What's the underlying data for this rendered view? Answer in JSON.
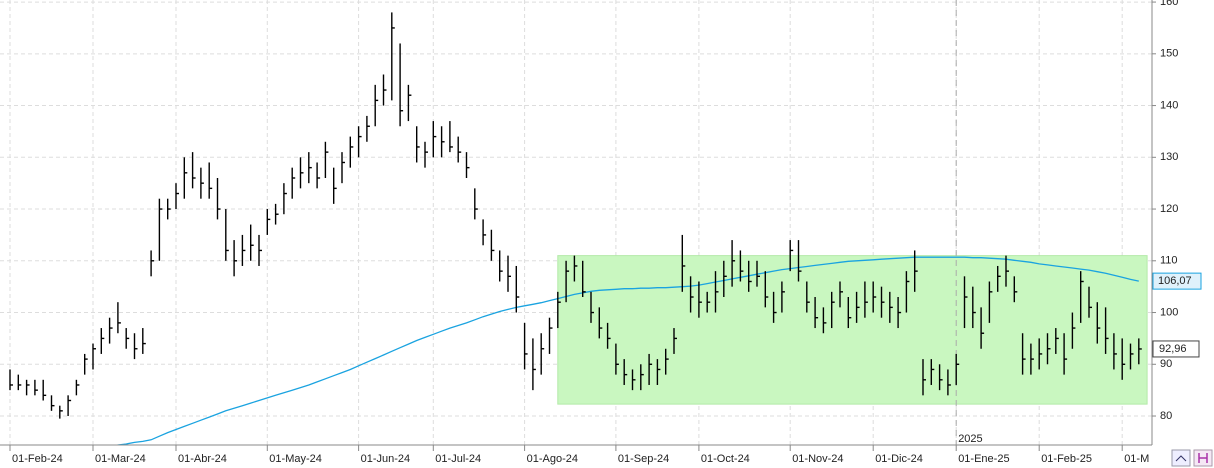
{
  "chart_data": {
    "type": "ohlc",
    "categories": [
      "01-Feb-24",
      null,
      null,
      null,
      null,
      null,
      null,
      null,
      null,
      null,
      "01-Mar-24",
      null,
      null,
      null,
      null,
      null,
      null,
      null,
      null,
      null,
      "01-Abr-24",
      null,
      null,
      null,
      null,
      null,
      null,
      null,
      null,
      null,
      null,
      "01-May-24",
      null,
      null,
      null,
      null,
      null,
      null,
      null,
      null,
      null,
      null,
      "01-Jun-24",
      null,
      null,
      null,
      null,
      null,
      null,
      null,
      null,
      "01-Jul-24",
      null,
      null,
      null,
      null,
      null,
      null,
      null,
      null,
      null,
      null,
      "01-Ago-24",
      null,
      null,
      null,
      null,
      null,
      null,
      null,
      null,
      null,
      null,
      "01-Sep-24",
      null,
      null,
      null,
      null,
      null,
      null,
      null,
      null,
      null,
      "01-Oct-24",
      null,
      null,
      null,
      null,
      null,
      null,
      null,
      null,
      null,
      null,
      "01-Nov-24",
      null,
      null,
      null,
      null,
      null,
      null,
      null,
      null,
      null,
      "01-Dic-24",
      null,
      null,
      null,
      null,
      null,
      null,
      null,
      null,
      null,
      "01-Ene-25",
      null,
      null,
      null,
      null,
      null,
      null,
      null,
      null,
      null,
      "01-Feb-25",
      null,
      null,
      null,
      null,
      null,
      null,
      null,
      null,
      null,
      "01-M",
      null,
      null
    ],
    "high": [
      89,
      88,
      87,
      87,
      87,
      84,
      82,
      84,
      87,
      92,
      94,
      97,
      99,
      102,
      97,
      96,
      97,
      112,
      122,
      122,
      125,
      130,
      131,
      128,
      129,
      126,
      120,
      114,
      115,
      117,
      115,
      120,
      121,
      125,
      128,
      130,
      131,
      129,
      133,
      128,
      131,
      134,
      136,
      138,
      144,
      146,
      158,
      152,
      144,
      136,
      133,
      137,
      136,
      137,
      134,
      131,
      124,
      118,
      116,
      112,
      111,
      109,
      98,
      95,
      96,
      99,
      104,
      110,
      111,
      110,
      104,
      101,
      98,
      94,
      91,
      89,
      90,
      92,
      91,
      93,
      97,
      115,
      107,
      106,
      104,
      108,
      110,
      114,
      112,
      110,
      110,
      108,
      104,
      106,
      114,
      114,
      106,
      103,
      101,
      104,
      106,
      103,
      104,
      106,
      106,
      105,
      104,
      103,
      108,
      112,
      91,
      91,
      90,
      89,
      92,
      107,
      105,
      101,
      106,
      109,
      111,
      107,
      96,
      94,
      95,
      96,
      97,
      96,
      100,
      108,
      105,
      102,
      101,
      96,
      95,
      94,
      95
    ],
    "low": [
      85,
      85,
      84,
      84,
      83,
      81,
      79.5,
      80,
      84,
      88,
      89,
      92,
      94,
      96,
      93,
      91,
      92,
      107,
      110,
      118,
      120,
      122,
      124,
      122,
      122,
      118,
      110,
      107,
      109,
      110,
      109,
      115,
      117,
      119,
      122,
      124,
      125,
      124,
      126,
      121,
      125,
      128,
      130,
      133,
      136,
      140,
      141,
      136,
      137,
      129,
      128,
      130,
      130,
      131,
      129,
      126,
      118,
      113,
      110,
      106,
      104,
      100,
      89,
      85,
      88,
      92,
      97,
      102,
      106,
      103,
      98,
      95,
      93,
      88,
      86,
      85,
      85,
      86,
      86,
      88,
      92,
      104,
      100,
      99,
      100,
      100,
      103,
      105,
      106,
      104,
      105,
      101,
      98,
      100,
      108,
      106,
      100,
      97,
      96,
      97,
      101,
      97,
      98,
      99,
      100,
      99,
      98,
      97,
      100,
      104,
      84,
      86,
      85,
      84,
      86,
      97,
      97,
      93,
      98,
      104,
      105,
      102,
      88,
      88,
      89,
      90,
      92,
      88,
      93,
      98,
      99,
      94,
      92,
      89,
      87,
      89,
      90
    ],
    "close": [
      86,
      86,
      86,
      85,
      84,
      82,
      81,
      83,
      86,
      91,
      93,
      95,
      97,
      98,
      95,
      93,
      94,
      110,
      120,
      120,
      123,
      127,
      126,
      125,
      124,
      120,
      112,
      110,
      112,
      113,
      112,
      118,
      119,
      123,
      126,
      127,
      128,
      126,
      131,
      124,
      129,
      132,
      134,
      136,
      141,
      143,
      155,
      139,
      142,
      132,
      131,
      134,
      133,
      132,
      131,
      128,
      120,
      115,
      112,
      108,
      107,
      103,
      92,
      89,
      93,
      97,
      102,
      108,
      109,
      104,
      100,
      97,
      95,
      90,
      88,
      87,
      88,
      90,
      89,
      91,
      95,
      109,
      103,
      102,
      102,
      104,
      107,
      110,
      108,
      106,
      107,
      103,
      100,
      104,
      112,
      108,
      102,
      99,
      98,
      102,
      104,
      99,
      101,
      102,
      103,
      102,
      101,
      100,
      106,
      108,
      87,
      89,
      87,
      86,
      90,
      103,
      100,
      96,
      104,
      107,
      108,
      104,
      91,
      91,
      92,
      93,
      95,
      91,
      97,
      106,
      101,
      97,
      95,
      92,
      90,
      92,
      92.96
    ],
    "color": "#000000",
    "moving_average": {
      "color": "#1aa3e0",
      "values": [
        null,
        null,
        null,
        null,
        null,
        null,
        null,
        null,
        null,
        null,
        null,
        null,
        74.1,
        74.4,
        74.6,
        74.9,
        75.1,
        75.4,
        76.1,
        76.8,
        77.4,
        78.0,
        78.6,
        79.2,
        79.8,
        80.4,
        81.0,
        81.5,
        82.0,
        82.5,
        83.0,
        83.5,
        84.0,
        84.5,
        85.0,
        85.5,
        86.0,
        86.6,
        87.2,
        87.8,
        88.4,
        89.0,
        89.7,
        90.4,
        91.1,
        91.8,
        92.5,
        93.2,
        93.9,
        94.6,
        95.2,
        95.8,
        96.4,
        97.0,
        97.5,
        98.0,
        98.6,
        99.2,
        99.7,
        100.2,
        100.6,
        101.0,
        101.3,
        101.6,
        101.9,
        102.3,
        102.7,
        103.1,
        103.5,
        103.8,
        104.1,
        104.3,
        104.4,
        104.5,
        104.6,
        104.6,
        104.7,
        104.7,
        104.8,
        104.8,
        104.9,
        105.0,
        105.1,
        105.3,
        105.6,
        105.9,
        106.2,
        106.5,
        106.8,
        107.1,
        107.4,
        107.7,
        108.0,
        108.3,
        108.5,
        108.7,
        108.9,
        109.1,
        109.3,
        109.5,
        109.7,
        109.9,
        110.0,
        110.1,
        110.2,
        110.3,
        110.4,
        110.5,
        110.6,
        110.7,
        110.7,
        110.7,
        110.7,
        110.7,
        110.7,
        110.7,
        110.6,
        110.6,
        110.5,
        110.4,
        110.3,
        110.1,
        109.9,
        109.7,
        109.4,
        109.2,
        109.0,
        108.8,
        108.6,
        108.4,
        108.2,
        107.9,
        107.6,
        107.2,
        106.8,
        106.4,
        106.07
      ],
      "last_label": {
        "value": 106.07,
        "label": "106,07"
      }
    },
    "last_price_label": {
      "value": 92.96,
      "label": "92,96"
    },
    "highlight": {
      "color": "#c9f7c0",
      "x": [
        66,
        136
      ],
      "y": [
        82.3,
        111
      ]
    },
    "year_marker": {
      "index": 114,
      "label": "2025"
    },
    "ylim": [
      74.4,
      160.4
    ],
    "yticks": [
      80,
      90,
      100,
      110,
      120,
      130,
      140,
      150,
      160
    ],
    "grid": true
  }
}
